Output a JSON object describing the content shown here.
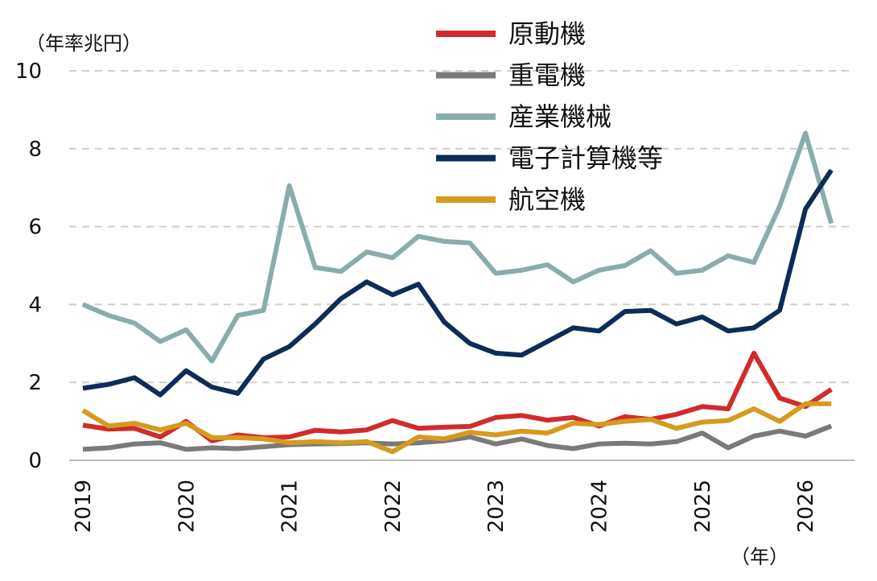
{
  "chart_data": {
    "type": "line",
    "y_unit_label": "（年率兆円）",
    "x_unit_label": "（年）",
    "ylim": [
      0,
      10
    ],
    "yticks": [
      "0",
      "2",
      "4",
      "6",
      "8",
      "10"
    ],
    "xlim": [
      2019,
      2026.5
    ],
    "xticks": [
      "2019",
      "2020",
      "2021",
      "2022",
      "2023",
      "2024",
      "2025",
      "2026"
    ],
    "grid": true,
    "legend_position": "top-center",
    "x": [
      2019.0,
      2019.25,
      2019.5,
      2019.75,
      2020.0,
      2020.25,
      2020.5,
      2020.75,
      2021.0,
      2021.25,
      2021.5,
      2021.75,
      2022.0,
      2022.25,
      2022.5,
      2022.75,
      2023.0,
      2023.25,
      2023.5,
      2023.75,
      2024.0,
      2024.25,
      2024.5,
      2024.75,
      2025.0,
      2025.25,
      2025.5,
      2025.75,
      2026.0,
      2026.25
    ],
    "series": [
      {
        "name": "原動機",
        "color": "#d22b2b",
        "values": [
          0.9,
          0.8,
          0.82,
          0.6,
          1.0,
          0.5,
          0.65,
          0.58,
          0.6,
          0.77,
          0.73,
          0.78,
          1.02,
          0.82,
          0.85,
          0.87,
          1.1,
          1.15,
          1.03,
          1.1,
          0.88,
          1.12,
          1.05,
          1.18,
          1.38,
          1.32,
          2.75,
          1.6,
          1.38,
          1.82
        ]
      },
      {
        "name": "重電機",
        "color": "#7a7a7a",
        "values": [
          0.28,
          0.32,
          0.42,
          0.45,
          0.28,
          0.32,
          0.3,
          0.35,
          0.4,
          0.42,
          0.43,
          0.45,
          0.42,
          0.45,
          0.5,
          0.6,
          0.42,
          0.55,
          0.38,
          0.3,
          0.42,
          0.44,
          0.42,
          0.48,
          0.7,
          0.32,
          0.62,
          0.75,
          0.62,
          0.88
        ]
      },
      {
        "name": "産業機械",
        "color": "#8aacac",
        "values": [
          4.0,
          3.72,
          3.52,
          3.05,
          3.35,
          2.55,
          3.72,
          3.85,
          7.05,
          4.95,
          4.85,
          5.35,
          5.2,
          5.75,
          5.62,
          5.58,
          4.8,
          4.88,
          5.02,
          4.58,
          4.88,
          5.0,
          5.38,
          4.8,
          4.88,
          5.25,
          5.08,
          6.52,
          8.4,
          6.08
        ]
      },
      {
        "name": "電子計算機等",
        "color": "#0b2d57",
        "values": [
          1.85,
          1.95,
          2.12,
          1.68,
          2.3,
          1.88,
          1.72,
          2.6,
          2.92,
          3.5,
          4.15,
          4.58,
          4.25,
          4.52,
          3.55,
          3.0,
          2.75,
          2.7,
          3.05,
          3.4,
          3.32,
          3.82,
          3.85,
          3.5,
          3.68,
          3.32,
          3.4,
          3.85,
          6.45,
          7.45
        ]
      },
      {
        "name": "航空機",
        "color": "#d59a1e",
        "values": [
          1.28,
          0.88,
          0.95,
          0.78,
          0.95,
          0.58,
          0.58,
          0.55,
          0.45,
          0.48,
          0.45,
          0.48,
          0.22,
          0.6,
          0.55,
          0.72,
          0.65,
          0.75,
          0.7,
          0.95,
          0.92,
          1.0,
          1.05,
          0.82,
          0.98,
          1.02,
          1.32,
          1.0,
          1.45,
          1.45
        ]
      }
    ]
  }
}
